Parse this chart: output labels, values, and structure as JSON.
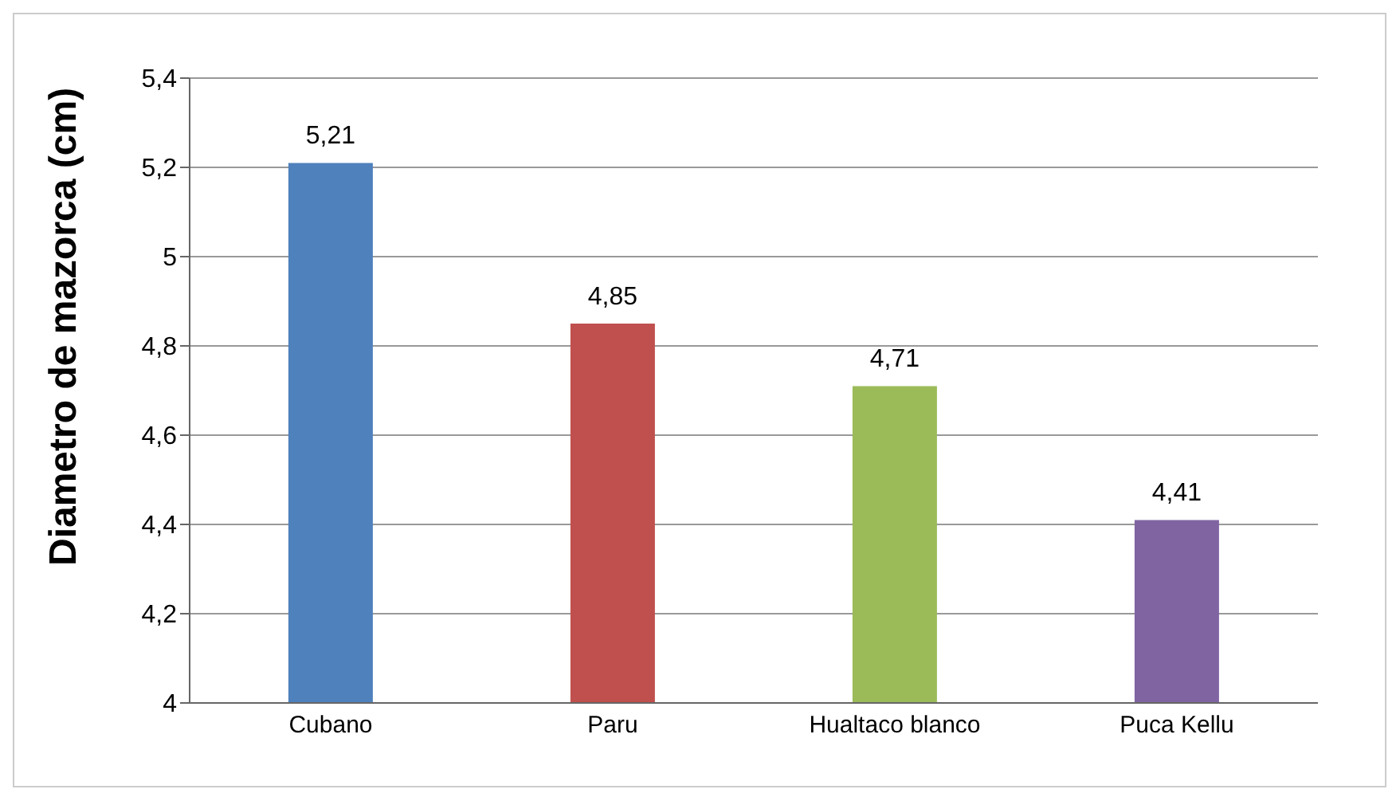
{
  "chart_data": {
    "type": "bar",
    "ylabel": "Diametro de mazorca (cm)",
    "categories": [
      "Cubano",
      "Paru",
      "Hualtaco blanco",
      "Puca Kellu"
    ],
    "values": [
      5.21,
      4.85,
      4.71,
      4.41
    ],
    "value_labels": [
      "5,21",
      "4,85",
      "4,71",
      "4,41"
    ],
    "colors": [
      "#4f81bd",
      "#c0504d",
      "#9bbb59",
      "#8064a2"
    ],
    "ylim": [
      4,
      5.4
    ],
    "yticks": [
      4,
      {
        "value": 4.2,
        "label": "4,2"
      },
      {
        "value": 4.4,
        "label": "4,4"
      },
      {
        "value": 4.6,
        "label": "4,6"
      },
      {
        "value": 4.8,
        "label": "4,8"
      },
      5,
      {
        "value": 5.2,
        "label": "5,2"
      },
      {
        "value": 5.4,
        "label": "5,4"
      }
    ],
    "grid": "y"
  }
}
